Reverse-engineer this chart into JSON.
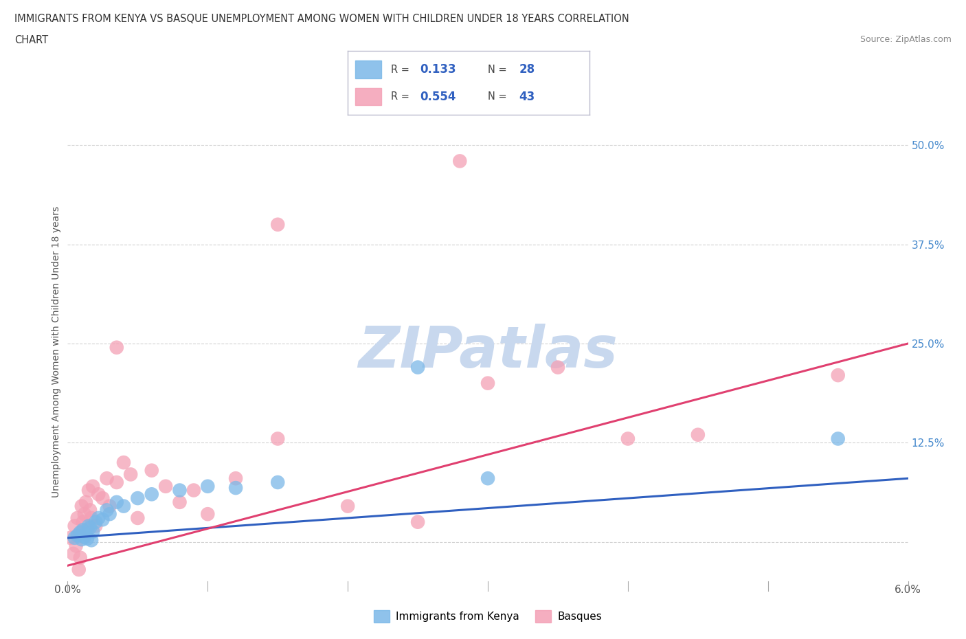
{
  "title_line1": "IMMIGRANTS FROM KENYA VS BASQUE UNEMPLOYMENT AMONG WOMEN WITH CHILDREN UNDER 18 YEARS CORRELATION",
  "title_line2": "CHART",
  "source": "Source: ZipAtlas.com",
  "ylabel": "Unemployment Among Women with Children Under 18 years",
  "xlim": [
    0.0,
    6.0
  ],
  "ylim": [
    -5.0,
    53.0
  ],
  "kenya_color": "#7bb8e8",
  "basque_color": "#f4a0b5",
  "kenya_line_color": "#3060c0",
  "basque_line_color": "#e04070",
  "watermark_color": "#c8d8ee",
  "bg_color": "#ffffff",
  "grid_color": "#cccccc",
  "legend_R_color": "#3060c0",
  "legend_N_color": "#3060c0",
  "kenya_scatter": [
    [
      0.05,
      0.5
    ],
    [
      0.07,
      0.8
    ],
    [
      0.09,
      1.2
    ],
    [
      0.1,
      0.3
    ],
    [
      0.11,
      1.5
    ],
    [
      0.12,
      0.6
    ],
    [
      0.13,
      1.0
    ],
    [
      0.14,
      0.4
    ],
    [
      0.15,
      2.0
    ],
    [
      0.16,
      1.8
    ],
    [
      0.17,
      0.2
    ],
    [
      0.18,
      1.3
    ],
    [
      0.2,
      2.5
    ],
    [
      0.22,
      3.0
    ],
    [
      0.25,
      2.8
    ],
    [
      0.28,
      4.0
    ],
    [
      0.3,
      3.5
    ],
    [
      0.35,
      5.0
    ],
    [
      0.4,
      4.5
    ],
    [
      0.5,
      5.5
    ],
    [
      0.6,
      6.0
    ],
    [
      0.8,
      6.5
    ],
    [
      1.0,
      7.0
    ],
    [
      1.2,
      6.8
    ],
    [
      1.5,
      7.5
    ],
    [
      2.5,
      22.0
    ],
    [
      3.0,
      8.0
    ],
    [
      5.5,
      13.0
    ]
  ],
  "basque_scatter": [
    [
      0.02,
      0.5
    ],
    [
      0.04,
      -1.5
    ],
    [
      0.05,
      2.0
    ],
    [
      0.06,
      -0.5
    ],
    [
      0.07,
      3.0
    ],
    [
      0.08,
      1.0
    ],
    [
      0.09,
      -2.0
    ],
    [
      0.1,
      4.5
    ],
    [
      0.11,
      2.5
    ],
    [
      0.12,
      3.5
    ],
    [
      0.13,
      5.0
    ],
    [
      0.14,
      1.5
    ],
    [
      0.15,
      6.5
    ],
    [
      0.16,
      4.0
    ],
    [
      0.17,
      3.0
    ],
    [
      0.18,
      7.0
    ],
    [
      0.2,
      2.0
    ],
    [
      0.22,
      6.0
    ],
    [
      0.25,
      5.5
    ],
    [
      0.28,
      8.0
    ],
    [
      0.3,
      4.5
    ],
    [
      0.35,
      7.5
    ],
    [
      0.4,
      10.0
    ],
    [
      0.45,
      8.5
    ],
    [
      0.5,
      3.0
    ],
    [
      0.6,
      9.0
    ],
    [
      0.7,
      7.0
    ],
    [
      0.8,
      5.0
    ],
    [
      0.9,
      6.5
    ],
    [
      1.0,
      3.5
    ],
    [
      1.2,
      8.0
    ],
    [
      1.5,
      13.0
    ],
    [
      2.0,
      4.5
    ],
    [
      2.5,
      2.5
    ],
    [
      3.0,
      20.0
    ],
    [
      3.5,
      22.0
    ],
    [
      4.0,
      13.0
    ],
    [
      4.5,
      13.5
    ],
    [
      0.35,
      24.5
    ],
    [
      1.5,
      40.0
    ],
    [
      2.8,
      48.0
    ],
    [
      5.5,
      21.0
    ],
    [
      0.08,
      -3.5
    ]
  ],
  "kenya_regline": [
    [
      0.0,
      0.5
    ],
    [
      6.0,
      8.0
    ]
  ],
  "basque_regline": [
    [
      0.0,
      -3.0
    ],
    [
      6.0,
      25.0
    ]
  ]
}
